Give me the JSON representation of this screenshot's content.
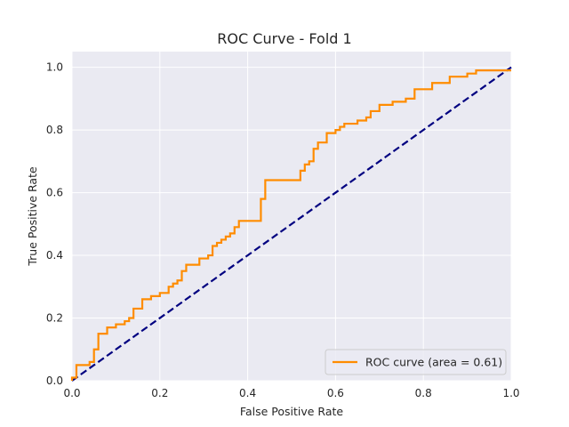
{
  "chart_data": {
    "type": "line",
    "title": "ROC Curve - Fold 1",
    "xlabel": "False Positive Rate",
    "ylabel": "True Positive Rate",
    "xlim": [
      0.0,
      1.0
    ],
    "ylim": [
      0.0,
      1.05
    ],
    "xticks": [
      "0.0",
      "0.2",
      "0.4",
      "0.6",
      "0.8",
      "1.0"
    ],
    "yticks": [
      "0.0",
      "0.2",
      "0.4",
      "0.6",
      "0.8",
      "1.0"
    ],
    "grid": true,
    "legend_position": "lower-right",
    "series": [
      {
        "name": "ROC curve (area = 0.61)",
        "color": "#ff8c00",
        "style": "solid",
        "x": [
          0.0,
          0.0,
          0.01,
          0.01,
          0.04,
          0.04,
          0.05,
          0.05,
          0.06,
          0.06,
          0.08,
          0.08,
          0.1,
          0.1,
          0.12,
          0.12,
          0.13,
          0.13,
          0.14,
          0.14,
          0.16,
          0.16,
          0.18,
          0.18,
          0.2,
          0.2,
          0.22,
          0.22,
          0.23,
          0.23,
          0.24,
          0.24,
          0.25,
          0.25,
          0.26,
          0.26,
          0.29,
          0.29,
          0.31,
          0.31,
          0.32,
          0.32,
          0.33,
          0.33,
          0.34,
          0.34,
          0.35,
          0.35,
          0.36,
          0.36,
          0.37,
          0.37,
          0.38,
          0.38,
          0.43,
          0.43,
          0.44,
          0.44,
          0.52,
          0.52,
          0.53,
          0.53,
          0.54,
          0.54,
          0.55,
          0.55,
          0.56,
          0.56,
          0.58,
          0.58,
          0.6,
          0.6,
          0.61,
          0.61,
          0.62,
          0.62,
          0.65,
          0.65,
          0.67,
          0.67,
          0.68,
          0.68,
          0.7,
          0.7,
          0.73,
          0.73,
          0.76,
          0.76,
          0.78,
          0.78,
          0.82,
          0.82,
          0.86,
          0.86,
          0.9,
          0.9,
          0.92,
          0.92,
          1.0
        ],
        "y": [
          0.0,
          0.01,
          0.01,
          0.05,
          0.05,
          0.06,
          0.06,
          0.1,
          0.1,
          0.15,
          0.15,
          0.17,
          0.17,
          0.18,
          0.18,
          0.19,
          0.19,
          0.2,
          0.2,
          0.23,
          0.23,
          0.26,
          0.26,
          0.27,
          0.27,
          0.28,
          0.28,
          0.3,
          0.3,
          0.31,
          0.31,
          0.32,
          0.32,
          0.35,
          0.35,
          0.37,
          0.37,
          0.39,
          0.39,
          0.4,
          0.4,
          0.43,
          0.43,
          0.44,
          0.44,
          0.45,
          0.45,
          0.46,
          0.46,
          0.47,
          0.47,
          0.49,
          0.49,
          0.51,
          0.51,
          0.58,
          0.58,
          0.64,
          0.64,
          0.67,
          0.67,
          0.69,
          0.69,
          0.7,
          0.7,
          0.74,
          0.74,
          0.76,
          0.76,
          0.79,
          0.79,
          0.8,
          0.8,
          0.81,
          0.81,
          0.82,
          0.82,
          0.83,
          0.83,
          0.84,
          0.84,
          0.86,
          0.86,
          0.88,
          0.88,
          0.89,
          0.89,
          0.9,
          0.9,
          0.93,
          0.93,
          0.95,
          0.95,
          0.97,
          0.97,
          0.98,
          0.98,
          0.99,
          0.99
        ]
      },
      {
        "name": "",
        "color": "#000080",
        "style": "dashed",
        "x": [
          0.0,
          1.0
        ],
        "y": [
          0.0,
          1.0
        ]
      }
    ],
    "colors": {
      "plot_background": "#eaeaf2",
      "grid": "#ffffff",
      "legend_background": "#eaeaf2",
      "legend_border": "#cccccc"
    }
  }
}
